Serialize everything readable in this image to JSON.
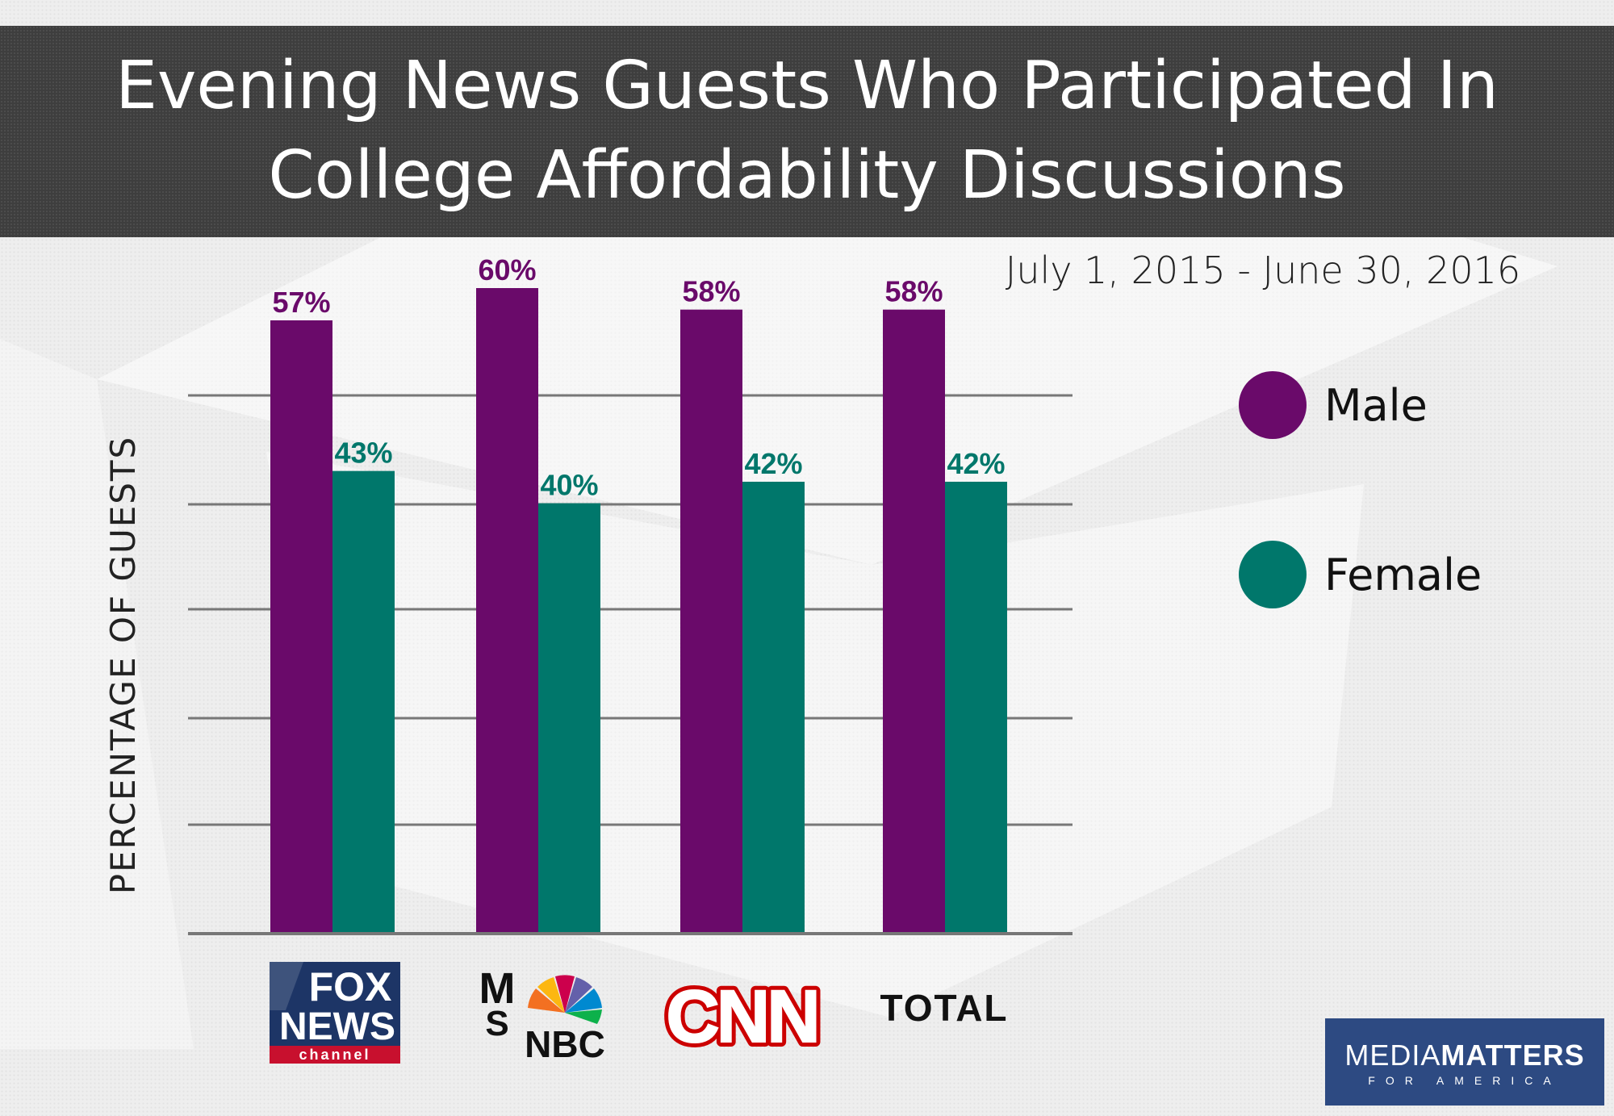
{
  "header": {
    "title_line1": "Evening News Guests Who Participated In",
    "title_line2": "College Affordability Discussions"
  },
  "date_range": "July 1, 2015 - June 30, 2016",
  "legend": [
    {
      "label": "Male",
      "color": "#6a0a6a"
    },
    {
      "label": "Female",
      "color": "#00776b"
    }
  ],
  "logos": {
    "fox": {
      "line1": "FOX",
      "line2": "NEWS",
      "line3": "channel"
    },
    "msnbc": {
      "ms1": "M",
      "ms2": "S",
      "nbc": "NBC"
    },
    "cnn": "CNN",
    "total": "TOTAL",
    "mediamatters": {
      "light": "MEDIA",
      "bold": "MATTERS",
      "sub": "FOR AMERICA"
    }
  },
  "chart_data": {
    "type": "bar",
    "categories": [
      "FOX NEWS channel",
      "MSNBC",
      "CNN",
      "TOTAL"
    ],
    "series": [
      {
        "name": "Male",
        "values": [
          57,
          60,
          58,
          58
        ],
        "labels": [
          "57%",
          "60%",
          "58%",
          "58%"
        ],
        "color": "#6a0a6a"
      },
      {
        "name": "Female",
        "values": [
          43,
          40,
          42,
          42
        ],
        "labels": [
          "43%",
          "40%",
          "42%",
          "42%"
        ],
        "color": "#00776b"
      }
    ],
    "title": "Evening News Guests Who Participated In College Affordability Discussions",
    "ylabel": "PERCENTAGE OF GUESTS",
    "ylim": [
      0,
      60
    ],
    "grid": true,
    "legend_position": "right"
  }
}
